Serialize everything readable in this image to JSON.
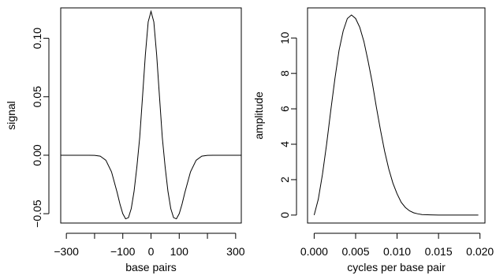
{
  "chart_data": [
    {
      "type": "line",
      "xlabel": "base pairs",
      "ylabel": "signal",
      "xlim": [
        -320,
        320
      ],
      "ylim": [
        -0.058,
        0.126
      ],
      "x_ticks": [
        -300,
        -200,
        -100,
        0,
        100,
        200,
        300
      ],
      "x_tick_labels": [
        "−300",
        "",
        "−100",
        "0",
        "100",
        "",
        "300"
      ],
      "y_ticks": [
        -0.05,
        0,
        0.05,
        0.1
      ],
      "y_tick_labels": [
        "−0.05",
        "0.00",
        "0.05",
        "0.10"
      ],
      "grid": false,
      "series": [
        {
          "x": [
            -320,
            -300,
            -280,
            -260,
            -240,
            -220,
            -200,
            -180,
            -160,
            -140,
            -120,
            -110,
            -100,
            -90,
            -80,
            -70,
            -60,
            -50,
            -40,
            -30,
            -20,
            -10,
            0,
            10,
            20,
            30,
            40,
            50,
            60,
            70,
            80,
            90,
            100,
            110,
            120,
            140,
            160,
            180,
            200,
            220,
            240,
            260,
            280,
            300,
            320
          ],
          "y": [
            0.0,
            0.0,
            0.0,
            0.0,
            0.0,
            0.0,
            -0.0001,
            -0.0008,
            -0.0043,
            -0.0142,
            -0.0319,
            -0.0418,
            -0.05,
            -0.0544,
            -0.0534,
            -0.0456,
            -0.0308,
            -0.0098,
            0.0153,
            0.0503,
            0.0859,
            0.114,
            0.123,
            0.114,
            0.0859,
            0.0503,
            0.0153,
            -0.0098,
            -0.0308,
            -0.0456,
            -0.0534,
            -0.0544,
            -0.05,
            -0.0418,
            -0.0319,
            -0.0142,
            -0.0043,
            -0.0008,
            -0.0001,
            0.0,
            0.0,
            0.0,
            0.0,
            0.0,
            0.0
          ]
        }
      ]
    },
    {
      "type": "line",
      "xlabel": "cycles per base pair",
      "ylabel": "amplitude",
      "xlim": [
        -0.0008,
        0.0206
      ],
      "ylim": [
        -0.45,
        11.7
      ],
      "x_ticks": [
        0,
        0.005,
        0.01,
        0.015,
        0.02
      ],
      "x_tick_labels": [
        "0.000",
        "0.005",
        "0.010",
        "0.015",
        "0.020"
      ],
      "y_ticks": [
        0,
        2,
        4,
        6,
        8,
        10
      ],
      "y_tick_labels": [
        "0",
        "2",
        "4",
        "6",
        "8",
        "10"
      ],
      "grid": false,
      "series": [
        {
          "x": [
            0.0,
            0.0005,
            0.001,
            0.0015,
            0.002,
            0.0025,
            0.003,
            0.0035,
            0.004,
            0.0045,
            0.005,
            0.0055,
            0.006,
            0.0065,
            0.007,
            0.0075,
            0.008,
            0.0085,
            0.009,
            0.0095,
            0.01,
            0.0105,
            0.011,
            0.0115,
            0.012,
            0.0125,
            0.013,
            0.014,
            0.015,
            0.016,
            0.017,
            0.018,
            0.019,
            0.0198
          ],
          "y": [
            0.0,
            0.9,
            2.3,
            4.0,
            5.9,
            7.7,
            9.3,
            10.4,
            11.1,
            11.3,
            11.1,
            10.6,
            9.8,
            8.7,
            7.5,
            6.1,
            4.8,
            3.6,
            2.6,
            1.8,
            1.2,
            0.72,
            0.43,
            0.24,
            0.13,
            0.07,
            0.03,
            0.01,
            0.0,
            0.0,
            0.0,
            0.0,
            0.0,
            0.0
          ]
        }
      ]
    }
  ]
}
